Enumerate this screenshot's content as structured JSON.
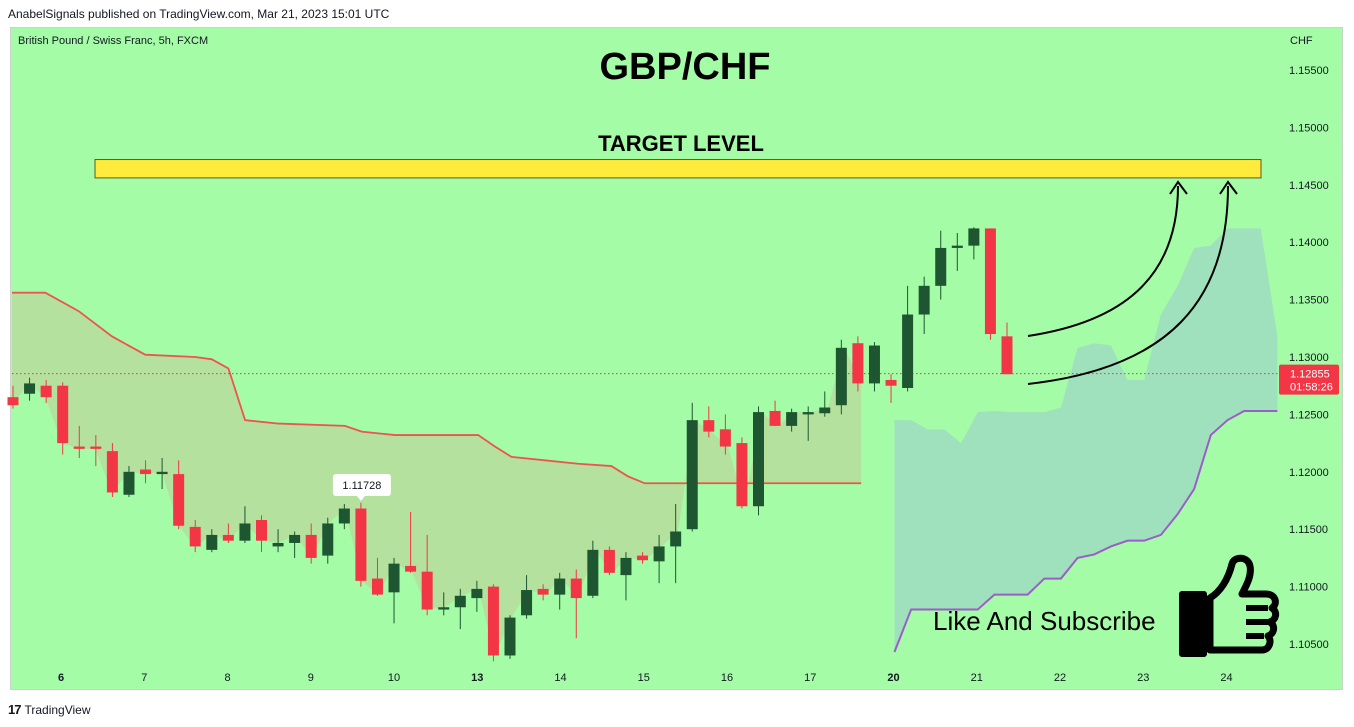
{
  "header": {
    "publisher_line": "AnabelSignals published on TradingView.com, Mar 21, 2023 15:01 UTC"
  },
  "chart_header": {
    "symbol_line": "British Pound / Swiss Franc, 5h, FXCM",
    "currency": "CHF"
  },
  "overlay": {
    "title": "GBP/CHF",
    "target_label": "TARGET LEVEL",
    "like_subscribe": "Like And Subscribe"
  },
  "footer": {
    "brand": "TradingView"
  },
  "colors": {
    "background": "#a4fca7",
    "bull": "#1e5631",
    "bear": "#f23645",
    "upper_line": "#ef5350",
    "lower_line": "#9c5cc9",
    "target_fill": "#ffeb3b",
    "price_badge": "#f23645"
  },
  "chart_data": {
    "type": "candlestick",
    "timeframe": "5h",
    "y_axis_ticks": [
      "1.15500",
      "1.15000",
      "1.14500",
      "1.14000",
      "1.13500",
      "1.13000",
      "1.12500",
      "1.12000",
      "1.11500",
      "1.11000",
      "1.10500"
    ],
    "ylim": [
      1.1035,
      1.1585
    ],
    "x_ticks": [
      {
        "label": "6",
        "bold": true,
        "at": 0
      },
      {
        "label": "7",
        "bold": false,
        "at": 5
      },
      {
        "label": "8",
        "bold": false,
        "at": 10
      },
      {
        "label": "9",
        "bold": false,
        "at": 15
      },
      {
        "label": "10",
        "bold": false,
        "at": 20
      },
      {
        "label": "13",
        "bold": true,
        "at": 25
      },
      {
        "label": "14",
        "bold": false,
        "at": 30
      },
      {
        "label": "15",
        "bold": false,
        "at": 35
      },
      {
        "label": "16",
        "bold": false,
        "at": 40
      },
      {
        "label": "17",
        "bold": false,
        "at": 45
      },
      {
        "label": "20",
        "bold": true,
        "at": 50
      },
      {
        "label": "21",
        "bold": false,
        "at": 55
      },
      {
        "label": "22",
        "bold": false,
        "at": 60
      },
      {
        "label": "23",
        "bold": false,
        "at": 65
      },
      {
        "label": "24",
        "bold": false,
        "at": 70
      }
    ],
    "candles": [
      [
        1.1265,
        1.1275,
        1.1255,
        1.1258
      ],
      [
        1.1268,
        1.1282,
        1.1262,
        1.1277
      ],
      [
        1.1275,
        1.128,
        1.126,
        1.1265
      ],
      [
        1.1275,
        1.1278,
        1.1215,
        1.1225
      ],
      [
        1.1222,
        1.124,
        1.1212,
        1.122
      ],
      [
        1.1222,
        1.1232,
        1.1205,
        1.122
      ],
      [
        1.1218,
        1.1225,
        1.1178,
        1.1182
      ],
      [
        1.118,
        1.1205,
        1.1178,
        1.12
      ],
      [
        1.1202,
        1.121,
        1.119,
        1.1198
      ],
      [
        1.1198,
        1.1212,
        1.1185,
        1.12
      ],
      [
        1.1198,
        1.121,
        1.115,
        1.1153
      ],
      [
        1.1152,
        1.1158,
        1.113,
        1.1135
      ],
      [
        1.1132,
        1.115,
        1.113,
        1.1145
      ],
      [
        1.1145,
        1.1155,
        1.1138,
        1.114
      ],
      [
        1.114,
        1.117,
        1.1138,
        1.1155
      ],
      [
        1.1158,
        1.1162,
        1.113,
        1.114
      ],
      [
        1.1135,
        1.115,
        1.113,
        1.1138
      ],
      [
        1.1138,
        1.1148,
        1.1125,
        1.1145
      ],
      [
        1.1145,
        1.1155,
        1.112,
        1.1125
      ],
      [
        1.1127,
        1.116,
        1.112,
        1.1155
      ],
      [
        1.1155,
        1.1172,
        1.115,
        1.1168
      ],
      [
        1.1168,
        1.1173,
        1.11,
        1.1105
      ],
      [
        1.1107,
        1.1125,
        1.1092,
        1.1093
      ],
      [
        1.1095,
        1.1125,
        1.1068,
        1.112
      ],
      [
        1.1118,
        1.1165,
        1.1112,
        1.1113
      ],
      [
        1.1113,
        1.1145,
        1.1075,
        1.108
      ],
      [
        1.108,
        1.1095,
        1.1075,
        1.1082
      ],
      [
        1.1082,
        1.1098,
        1.1063,
        1.1092
      ],
      [
        1.109,
        1.1105,
        1.1078,
        1.1098
      ],
      [
        1.11,
        1.1102,
        1.1035,
        1.104
      ],
      [
        1.104,
        1.1075,
        1.1037,
        1.1073
      ],
      [
        1.1075,
        1.111,
        1.1072,
        1.1097
      ],
      [
        1.1098,
        1.1102,
        1.1088,
        1.1093
      ],
      [
        1.1093,
        1.1112,
        1.108,
        1.1107
      ],
      [
        1.1107,
        1.1115,
        1.1055,
        1.109
      ],
      [
        1.1092,
        1.114,
        1.109,
        1.1132
      ],
      [
        1.1132,
        1.1135,
        1.111,
        1.1112
      ],
      [
        1.111,
        1.113,
        1.1088,
        1.1125
      ],
      [
        1.1127,
        1.113,
        1.112,
        1.1123
      ],
      [
        1.1122,
        1.1145,
        1.1103,
        1.1135
      ],
      [
        1.1135,
        1.1172,
        1.1103,
        1.1148
      ],
      [
        1.115,
        1.126,
        1.1148,
        1.1245
      ],
      [
        1.1245,
        1.1257,
        1.123,
        1.1235
      ],
      [
        1.1237,
        1.125,
        1.1215,
        1.1222
      ],
      [
        1.1225,
        1.123,
        1.1168,
        1.117
      ],
      [
        1.117,
        1.1257,
        1.1162,
        1.1252
      ],
      [
        1.1253,
        1.1262,
        1.124,
        1.124
      ],
      [
        1.124,
        1.1255,
        1.1235,
        1.1252
      ],
      [
        1.125,
        1.1257,
        1.1227,
        1.1252
      ],
      [
        1.1251,
        1.127,
        1.1248,
        1.1256
      ],
      [
        1.1258,
        1.1315,
        1.125,
        1.1308
      ],
      [
        1.1312,
        1.1318,
        1.127,
        1.1277
      ],
      [
        1.1277,
        1.1313,
        1.127,
        1.131
      ],
      [
        1.128,
        1.1285,
        1.126,
        1.1275
      ],
      [
        1.1273,
        1.1362,
        1.127,
        1.1337
      ],
      [
        1.1337,
        1.137,
        1.132,
        1.1362
      ],
      [
        1.1362,
        1.141,
        1.135,
        1.1395
      ],
      [
        1.1395,
        1.1408,
        1.1375,
        1.1397
      ],
      [
        1.1397,
        1.1413,
        1.1385,
        1.1412
      ],
      [
        1.1412,
        1.1412,
        1.1315,
        1.132
      ],
      [
        1.1318,
        1.133,
        1.1285,
        1.1285
      ]
    ],
    "upper_band": [
      [
        0,
        1.1356
      ],
      [
        2,
        1.1356
      ],
      [
        4,
        1.134
      ],
      [
        6,
        1.1318
      ],
      [
        8,
        1.1302
      ],
      [
        11,
        1.13
      ],
      [
        12,
        1.1298
      ],
      [
        13,
        1.129
      ],
      [
        14,
        1.1245
      ],
      [
        16,
        1.1242
      ],
      [
        20,
        1.124
      ],
      [
        21,
        1.1235
      ],
      [
        23,
        1.1232
      ],
      [
        28,
        1.1232
      ],
      [
        29,
        1.1222
      ],
      [
        30,
        1.1213
      ],
      [
        32,
        1.121
      ],
      [
        34,
        1.1207
      ],
      [
        36,
        1.1205
      ],
      [
        37,
        1.1196
      ],
      [
        38,
        1.119
      ],
      [
        51,
        1.119
      ]
    ],
    "lower_band": [
      [
        53,
        1.1043
      ],
      [
        54,
        1.108
      ],
      [
        58,
        1.108
      ],
      [
        59,
        1.1093
      ],
      [
        61,
        1.1093
      ],
      [
        62,
        1.1107
      ],
      [
        63,
        1.1107
      ],
      [
        64,
        1.1125
      ],
      [
        65,
        1.1128
      ],
      [
        66,
        1.1135
      ],
      [
        67,
        1.114
      ],
      [
        68,
        1.114
      ],
      [
        69,
        1.1145
      ],
      [
        70,
        1.1163
      ],
      [
        71,
        1.1185
      ],
      [
        72,
        1.1232
      ],
      [
        73,
        1.1245
      ],
      [
        74,
        1.1253
      ],
      [
        75,
        1.1253
      ],
      [
        76,
        1.1253
      ]
    ],
    "marked_high": {
      "label": "1.11728",
      "index": 21
    },
    "current_price": {
      "label": "1.12855",
      "countdown": "01:58:26",
      "value": 1.12855
    },
    "target_zone": {
      "from": 1.1456,
      "to": 1.1472,
      "label": "TARGET LEVEL"
    }
  }
}
